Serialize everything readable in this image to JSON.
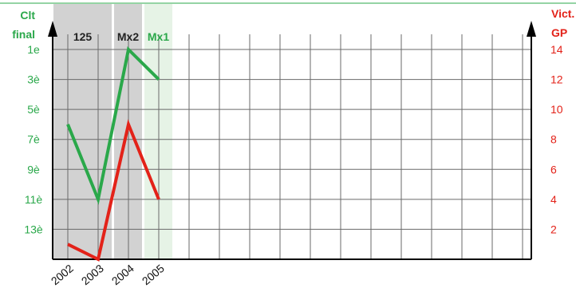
{
  "chart_data": {
    "type": "line",
    "x": [
      "2002",
      "2003",
      "2004",
      "2005"
    ],
    "left_axis": {
      "label_line1": "Clt",
      "label_line2": "final",
      "ticks": [
        "1e",
        "3è",
        "5è",
        "7è",
        "9è",
        "11è",
        "13è"
      ],
      "tick_values": [
        1,
        3,
        5,
        7,
        9,
        11,
        13
      ],
      "reversed": true,
      "range": [
        1,
        15
      ]
    },
    "right_axis": {
      "label_line1": "Vict.",
      "label_line2": "GP",
      "ticks": [
        "14",
        "12",
        "10",
        "8",
        "6",
        "4",
        "2"
      ],
      "tick_values": [
        14,
        12,
        10,
        8,
        6,
        4,
        2
      ],
      "range": [
        0,
        14
      ]
    },
    "series": [
      {
        "axis": "left",
        "color": "#2aa84a",
        "values": [
          6,
          11,
          1,
          3
        ]
      },
      {
        "axis": "right",
        "color": "#e32219",
        "values": [
          1,
          0,
          9,
          4
        ]
      }
    ],
    "class_bands": [
      {
        "label": "125",
        "from": "2002",
        "to": "2003",
        "color": "#d2d2d2",
        "label_color": "#222222"
      },
      {
        "label": "Mx2",
        "from": "2004",
        "to": "2004",
        "color": "#d2d2d2",
        "label_color": "#222222"
      },
      {
        "label": "Mx1",
        "from": "2005",
        "to": "2005",
        "color": "#e6f3e6",
        "label_color": "#2aa84a"
      }
    ],
    "grid": true,
    "colors": {
      "left_axis_text": "#2aa84a",
      "right_axis_text": "#e32219",
      "top_rule": "#2aa84a"
    }
  }
}
